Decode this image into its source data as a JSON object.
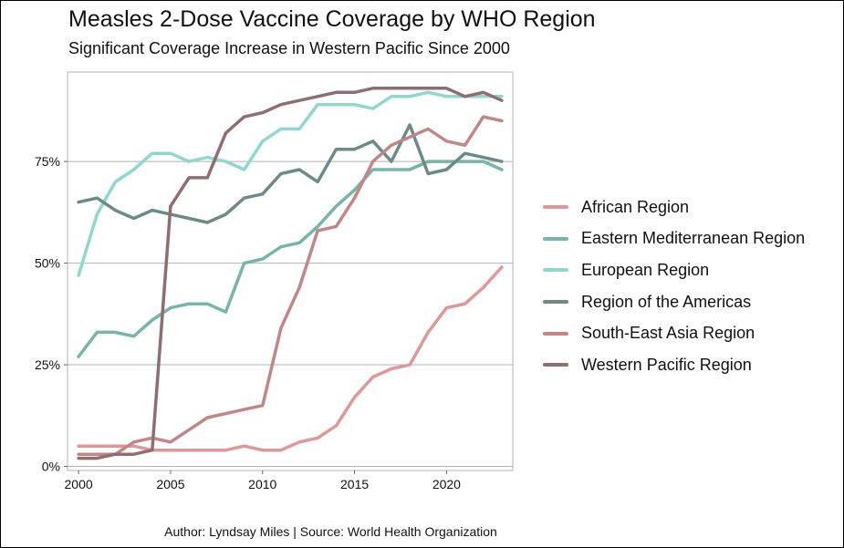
{
  "title": "Measles 2-Dose Vaccine Coverage by WHO Region",
  "subtitle": "Significant Coverage Increase in Western Pacific Since 2000",
  "caption": "Author: Lyndsay Miles | Source: World Health Organization",
  "chart_data": {
    "type": "line",
    "title": "Measles 2-Dose Vaccine Coverage by WHO Region",
    "subtitle": "Significant Coverage Increase in Western Pacific Since 2000",
    "xlabel": "",
    "ylabel": "",
    "xlim": [
      1999.4,
      2023.6
    ],
    "ylim": [
      -1,
      97
    ],
    "x_ticks": [
      2000,
      2005,
      2010,
      2015,
      2020
    ],
    "x_tick_labels": [
      "2000",
      "2005",
      "2010",
      "2015",
      "2020"
    ],
    "y_ticks": [
      0,
      25,
      50,
      75
    ],
    "y_tick_labels": [
      "0%",
      "25%",
      "50%",
      "75%"
    ],
    "grid": "horizontal",
    "legend_position": "right",
    "x": [
      2000,
      2001,
      2002,
      2003,
      2004,
      2005,
      2006,
      2007,
      2008,
      2009,
      2010,
      2011,
      2012,
      2013,
      2014,
      2015,
      2016,
      2017,
      2018,
      2019,
      2020,
      2021,
      2022,
      2023
    ],
    "series": [
      {
        "name": "African Region",
        "color": "#E09797",
        "values": [
          5,
          5,
          5,
          5,
          4,
          4,
          4,
          4,
          4,
          5,
          4,
          4,
          6,
          7,
          10,
          17,
          22,
          24,
          25,
          33,
          39,
          40,
          44,
          49
        ]
      },
      {
        "name": "Eastern Mediterranean Region",
        "color": "#76B5A8",
        "values": [
          27,
          33,
          33,
          32,
          36,
          39,
          40,
          40,
          38,
          50,
          51,
          54,
          55,
          59,
          64,
          68,
          73,
          73,
          73,
          75,
          75,
          75,
          75,
          73
        ]
      },
      {
        "name": "European Region",
        "color": "#8ED8CD",
        "values": [
          47,
          62,
          70,
          73,
          77,
          77,
          75,
          76,
          75,
          73,
          80,
          83,
          83,
          89,
          89,
          89,
          88,
          91,
          91,
          92,
          91,
          91,
          91,
          91
        ]
      },
      {
        "name": "Region of the Americas",
        "color": "#6C8B87",
        "values": [
          65,
          66,
          63,
          61,
          63,
          62,
          61,
          60,
          62,
          66,
          67,
          72,
          73,
          70,
          78,
          78,
          80,
          75,
          84,
          72,
          73,
          77,
          76,
          75
        ]
      },
      {
        "name": "South-East Asia Region",
        "color": "#C38686",
        "values": [
          3,
          3,
          3,
          6,
          7,
          6,
          9,
          12,
          13,
          14,
          15,
          34,
          44,
          58,
          59,
          66,
          75,
          79,
          81,
          83,
          80,
          79,
          86,
          85
        ]
      },
      {
        "name": "Western Pacific Region",
        "color": "#8E6E70",
        "values": [
          2,
          2,
          3,
          3,
          4,
          64,
          71,
          71,
          82,
          86,
          87,
          89,
          90,
          91,
          92,
          92,
          93,
          93,
          93,
          93,
          93,
          91,
          92,
          90
        ]
      }
    ]
  }
}
